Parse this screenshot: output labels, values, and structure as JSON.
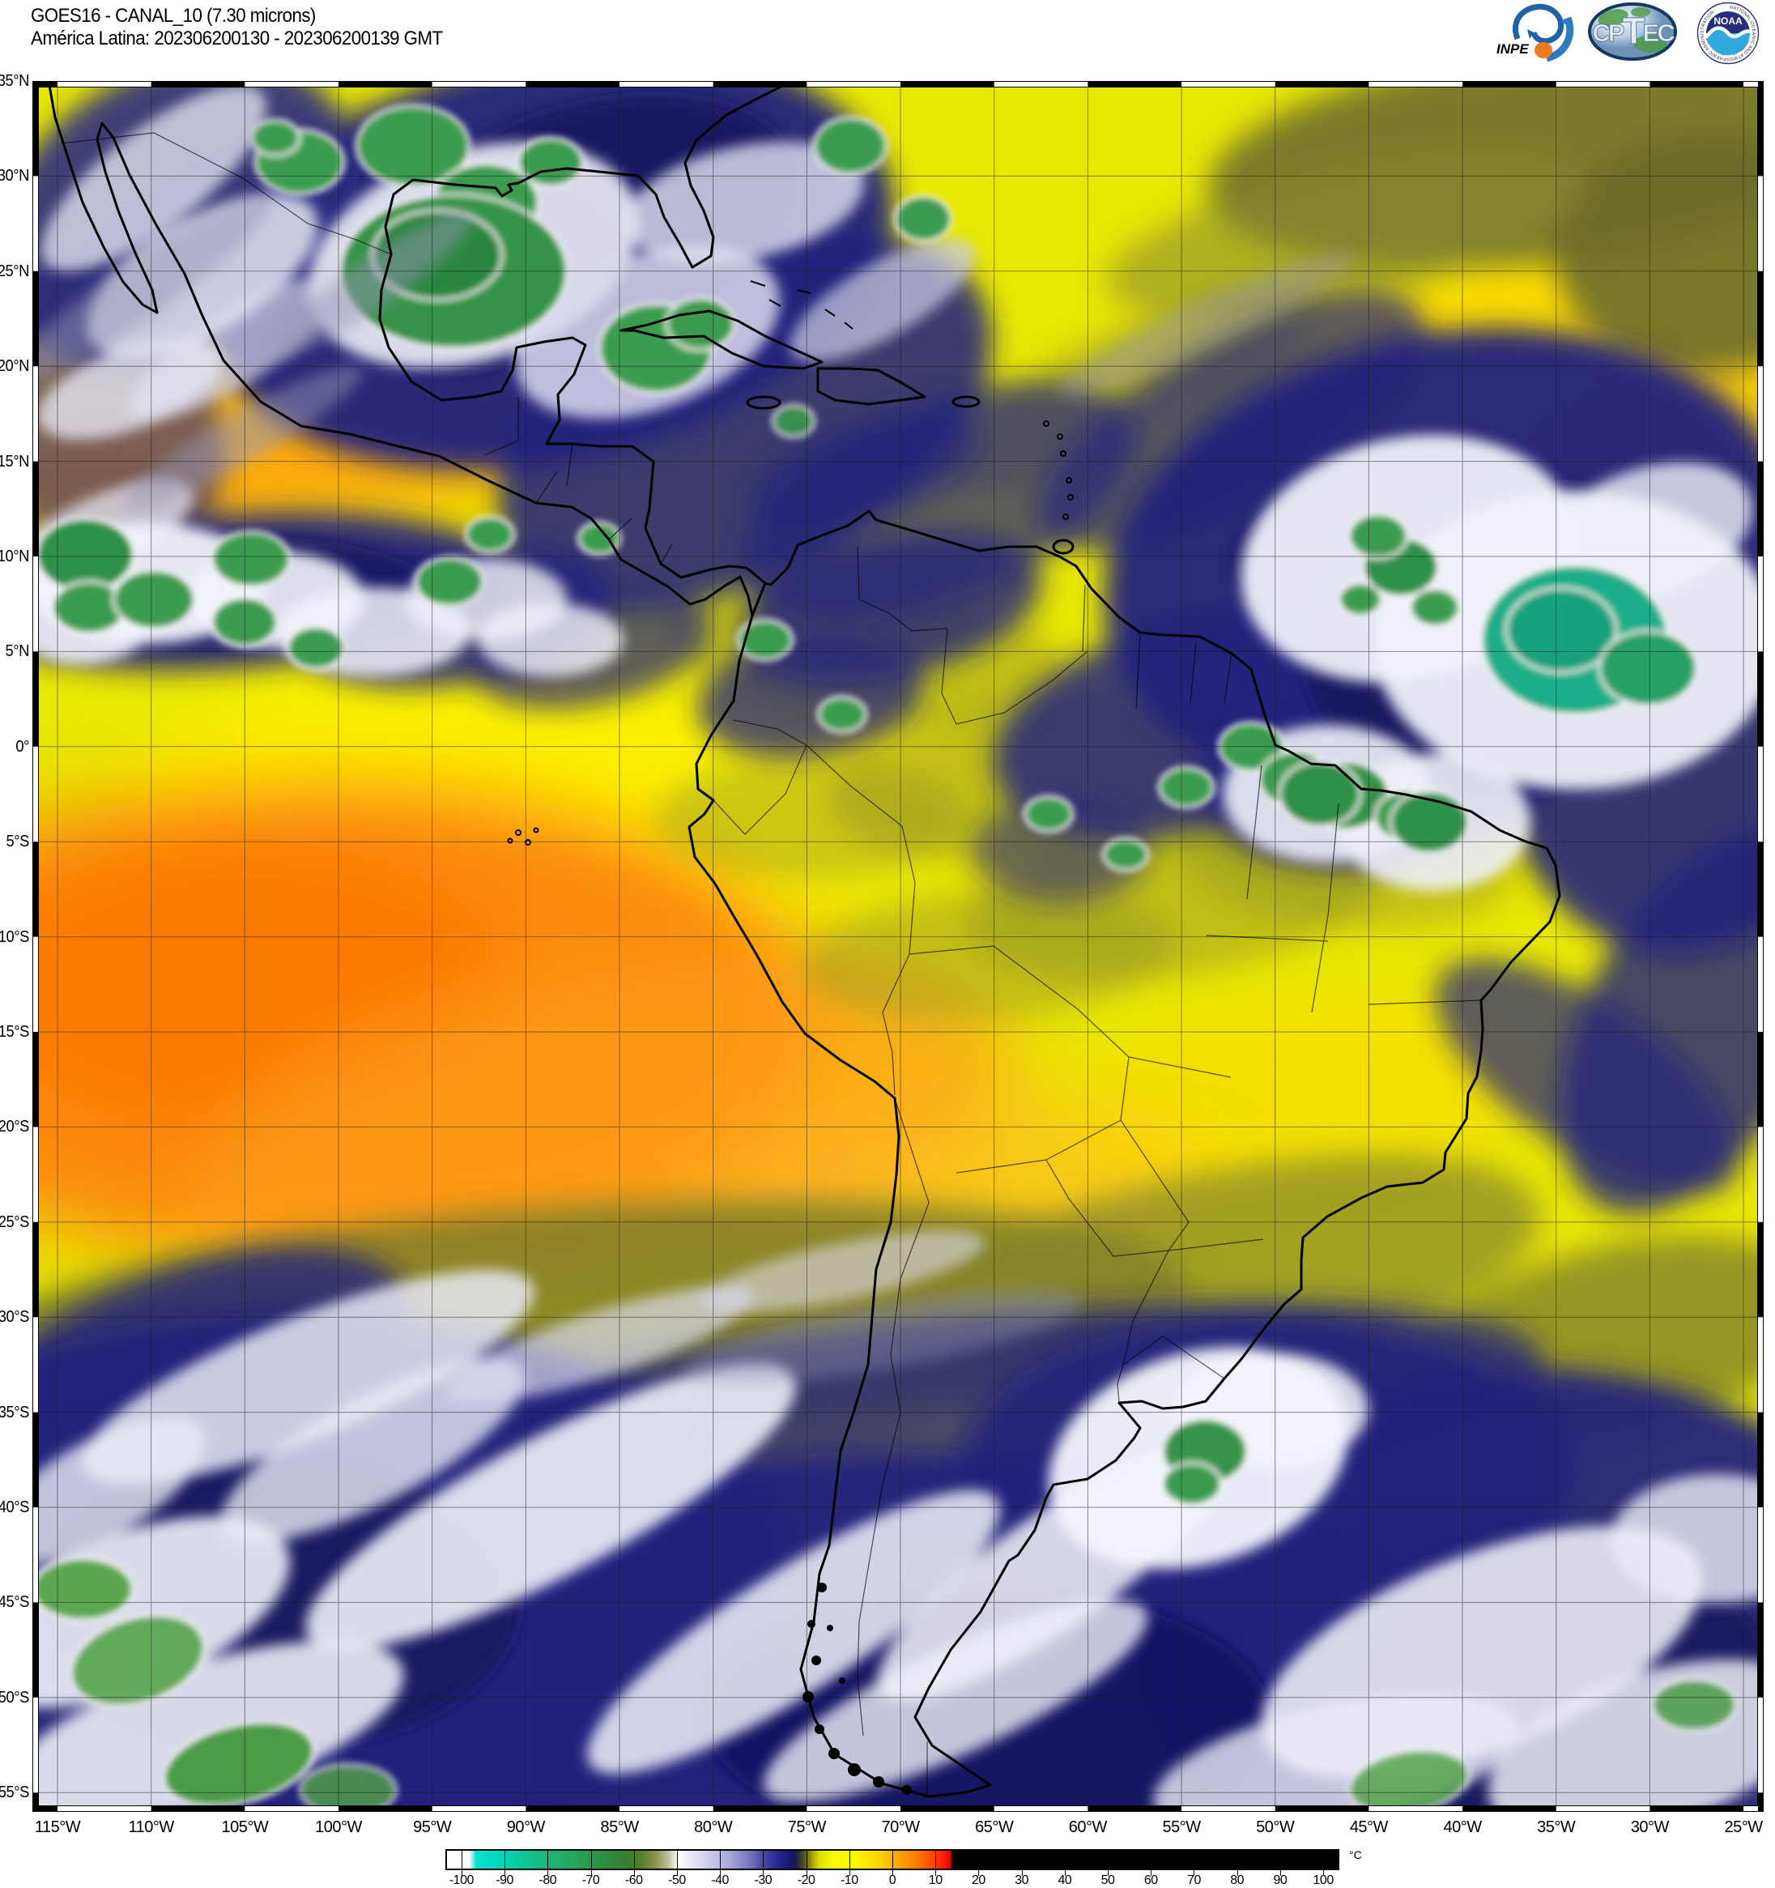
{
  "header": {
    "title_line1": "GOES16 - CANAL_10 (7.30 microns)",
    "title_line2": "América Latina: 202306200130 - 202306200139 GMT",
    "satellite": "GOES16",
    "channel": "CANAL_10",
    "wavelength": "7.30 microns",
    "region": "América Latina",
    "period_start": "202306200130",
    "period_end": "202306200139",
    "timezone": "GMT"
  },
  "logos": {
    "inpe": {
      "label": "INPE"
    },
    "cptec": {
      "parts": [
        "CP",
        "T",
        "EC"
      ]
    },
    "noaa": {
      "label": "NOAA",
      "ring_top": "NATIONAL OCEANIC AND ATMOSPHERIC ADMINISTRATION",
      "ring_bottom": "U.S. DEPARTMENT OF COMMERCE"
    }
  },
  "map": {
    "projection_note": "satellite water-vapor imagery with 5-degree lat/lon grid",
    "lat_labels": [
      "35°N",
      "30°N",
      "25°N",
      "20°N",
      "15°N",
      "10°N",
      "5°N",
      "0°",
      "5°S",
      "10°S",
      "15°S",
      "20°S",
      "25°S",
      "30°S",
      "35°S",
      "40°S",
      "45°S",
      "50°S",
      "55°S"
    ],
    "lon_labels": [
      "115°W",
      "110°W",
      "105°W",
      "100°W",
      "95°W",
      "90°W",
      "85°W",
      "80°W",
      "75°W",
      "70°W",
      "65°W",
      "60°W",
      "55°W",
      "50°W",
      "45°W",
      "40°W",
      "35°W",
      "30°W",
      "25°W"
    ]
  },
  "colorbar": {
    "unit": "°C",
    "tick_values": [
      -100,
      -90,
      -80,
      -70,
      -60,
      -50,
      -40,
      -30,
      -20,
      -10,
      0,
      10,
      20,
      30,
      40,
      50,
      60,
      70,
      80,
      90,
      100
    ],
    "stops": [
      {
        "v": -100,
        "c": "#ffffff"
      },
      {
        "v": -98.5,
        "c": "#ffffff"
      },
      {
        "v": -97,
        "c": "#0ae0cf"
      },
      {
        "v": -92,
        "c": "#00d8c0"
      },
      {
        "v": -88,
        "c": "#09cba4"
      },
      {
        "v": -83,
        "c": "#16bd86"
      },
      {
        "v": -78,
        "c": "#1fb26e"
      },
      {
        "v": -73,
        "c": "#27a257"
      },
      {
        "v": -68,
        "c": "#2c9244"
      },
      {
        "v": -64,
        "c": "#2e8533"
      },
      {
        "v": -61,
        "c": "#3d7d2a"
      },
      {
        "v": -58,
        "c": "#5e7f2d"
      },
      {
        "v": -55,
        "c": "#8f9455"
      },
      {
        "v": -52,
        "c": "#c2c49b"
      },
      {
        "v": -50,
        "c": "#ffffff"
      },
      {
        "v": -48,
        "c": "#efeff8"
      },
      {
        "v": -45,
        "c": "#dedcf0"
      },
      {
        "v": -41,
        "c": "#c2c0e6"
      },
      {
        "v": -37,
        "c": "#a09ed6"
      },
      {
        "v": -33,
        "c": "#7472bd"
      },
      {
        "v": -30,
        "c": "#4a48a4"
      },
      {
        "v": -27,
        "c": "#2b2a92"
      },
      {
        "v": -25,
        "c": "#1d1d80"
      },
      {
        "v": -23,
        "c": "#16165e"
      },
      {
        "v": -22,
        "c": "#262741"
      },
      {
        "v": -21,
        "c": "#45461f"
      },
      {
        "v": -20,
        "c": "#6b6b05"
      },
      {
        "v": -18.5,
        "c": "#a9a900"
      },
      {
        "v": -17,
        "c": "#dede00"
      },
      {
        "v": -14,
        "c": "#f8f800"
      },
      {
        "v": -10,
        "c": "#ffff00"
      },
      {
        "v": -6,
        "c": "#ffe800"
      },
      {
        "v": -2,
        "c": "#ffc800"
      },
      {
        "v": 2,
        "c": "#ffa000"
      },
      {
        "v": 6,
        "c": "#ff7700"
      },
      {
        "v": 9,
        "c": "#ff4d00"
      },
      {
        "v": 12,
        "c": "#ff1e00"
      },
      {
        "v": 13.5,
        "c": "#e60000"
      },
      {
        "v": 14,
        "c": "#000000"
      },
      {
        "v": 100,
        "c": "#000000"
      }
    ]
  }
}
